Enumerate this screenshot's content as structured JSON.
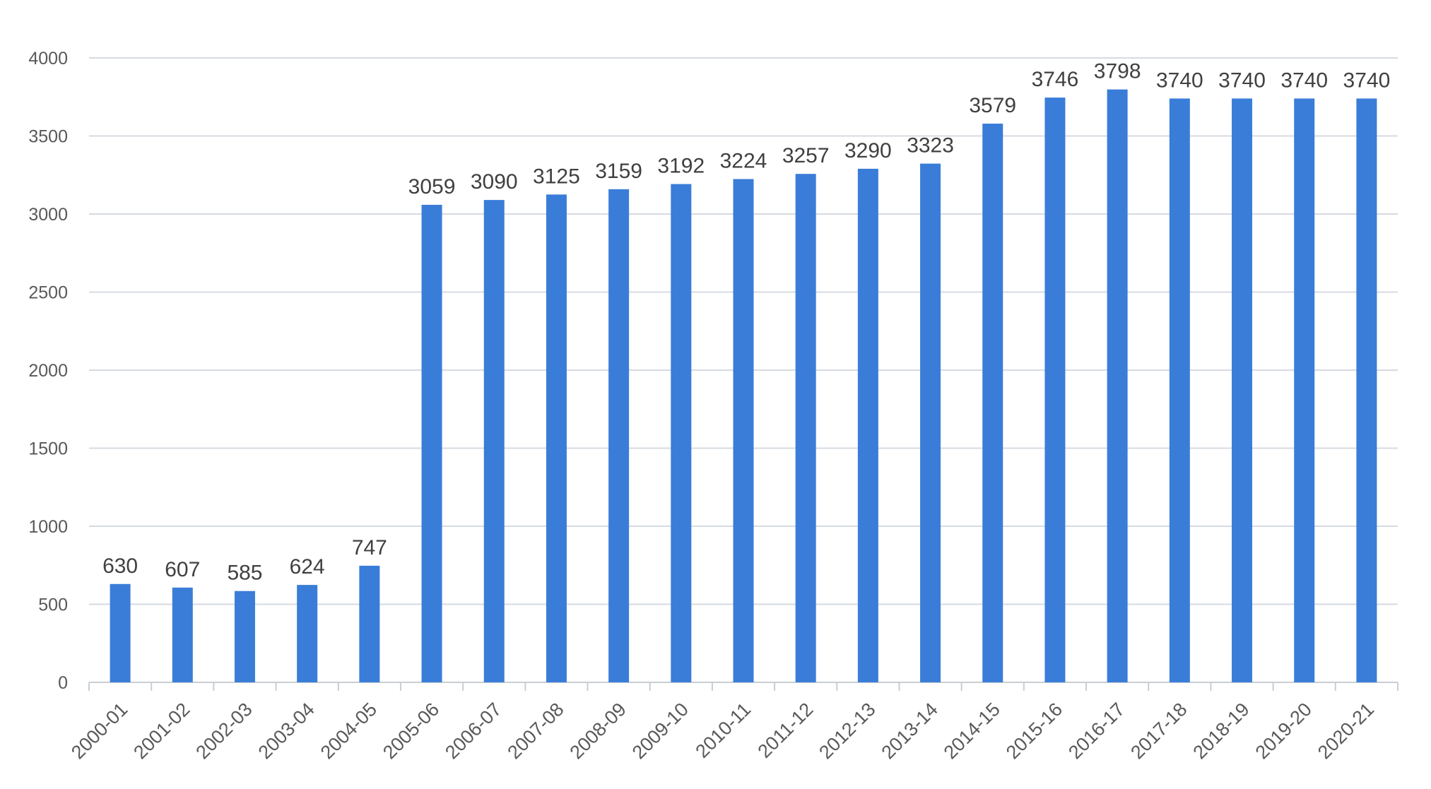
{
  "chart_data": {
    "type": "bar",
    "title": "",
    "xlabel": "",
    "ylabel": "",
    "categories": [
      "2000-01",
      "2001-02",
      "2002-03",
      "2003-04",
      "2004-05",
      "2005-06",
      "2006-07",
      "2007-08",
      "2008-09",
      "2009-10",
      "2010-11",
      "2011-12",
      "2012-13",
      "2013-14",
      "2014-15",
      "2015-16",
      "2016-17",
      "2017-18",
      "2018-19",
      "2019-20",
      "2020-21"
    ],
    "values": [
      630,
      607,
      585,
      624,
      747,
      3059,
      3090,
      3125,
      3159,
      3192,
      3224,
      3257,
      3290,
      3323,
      3579,
      3746,
      3798,
      3740,
      3740,
      3740,
      3740
    ],
    "ylim": [
      0,
      4000
    ],
    "yticks": [
      0,
      500,
      1000,
      1500,
      2000,
      2500,
      3000,
      3500,
      4000
    ],
    "grid": true,
    "legend": "none",
    "bar_color": "#3A7DD8",
    "data_labels": true
  }
}
